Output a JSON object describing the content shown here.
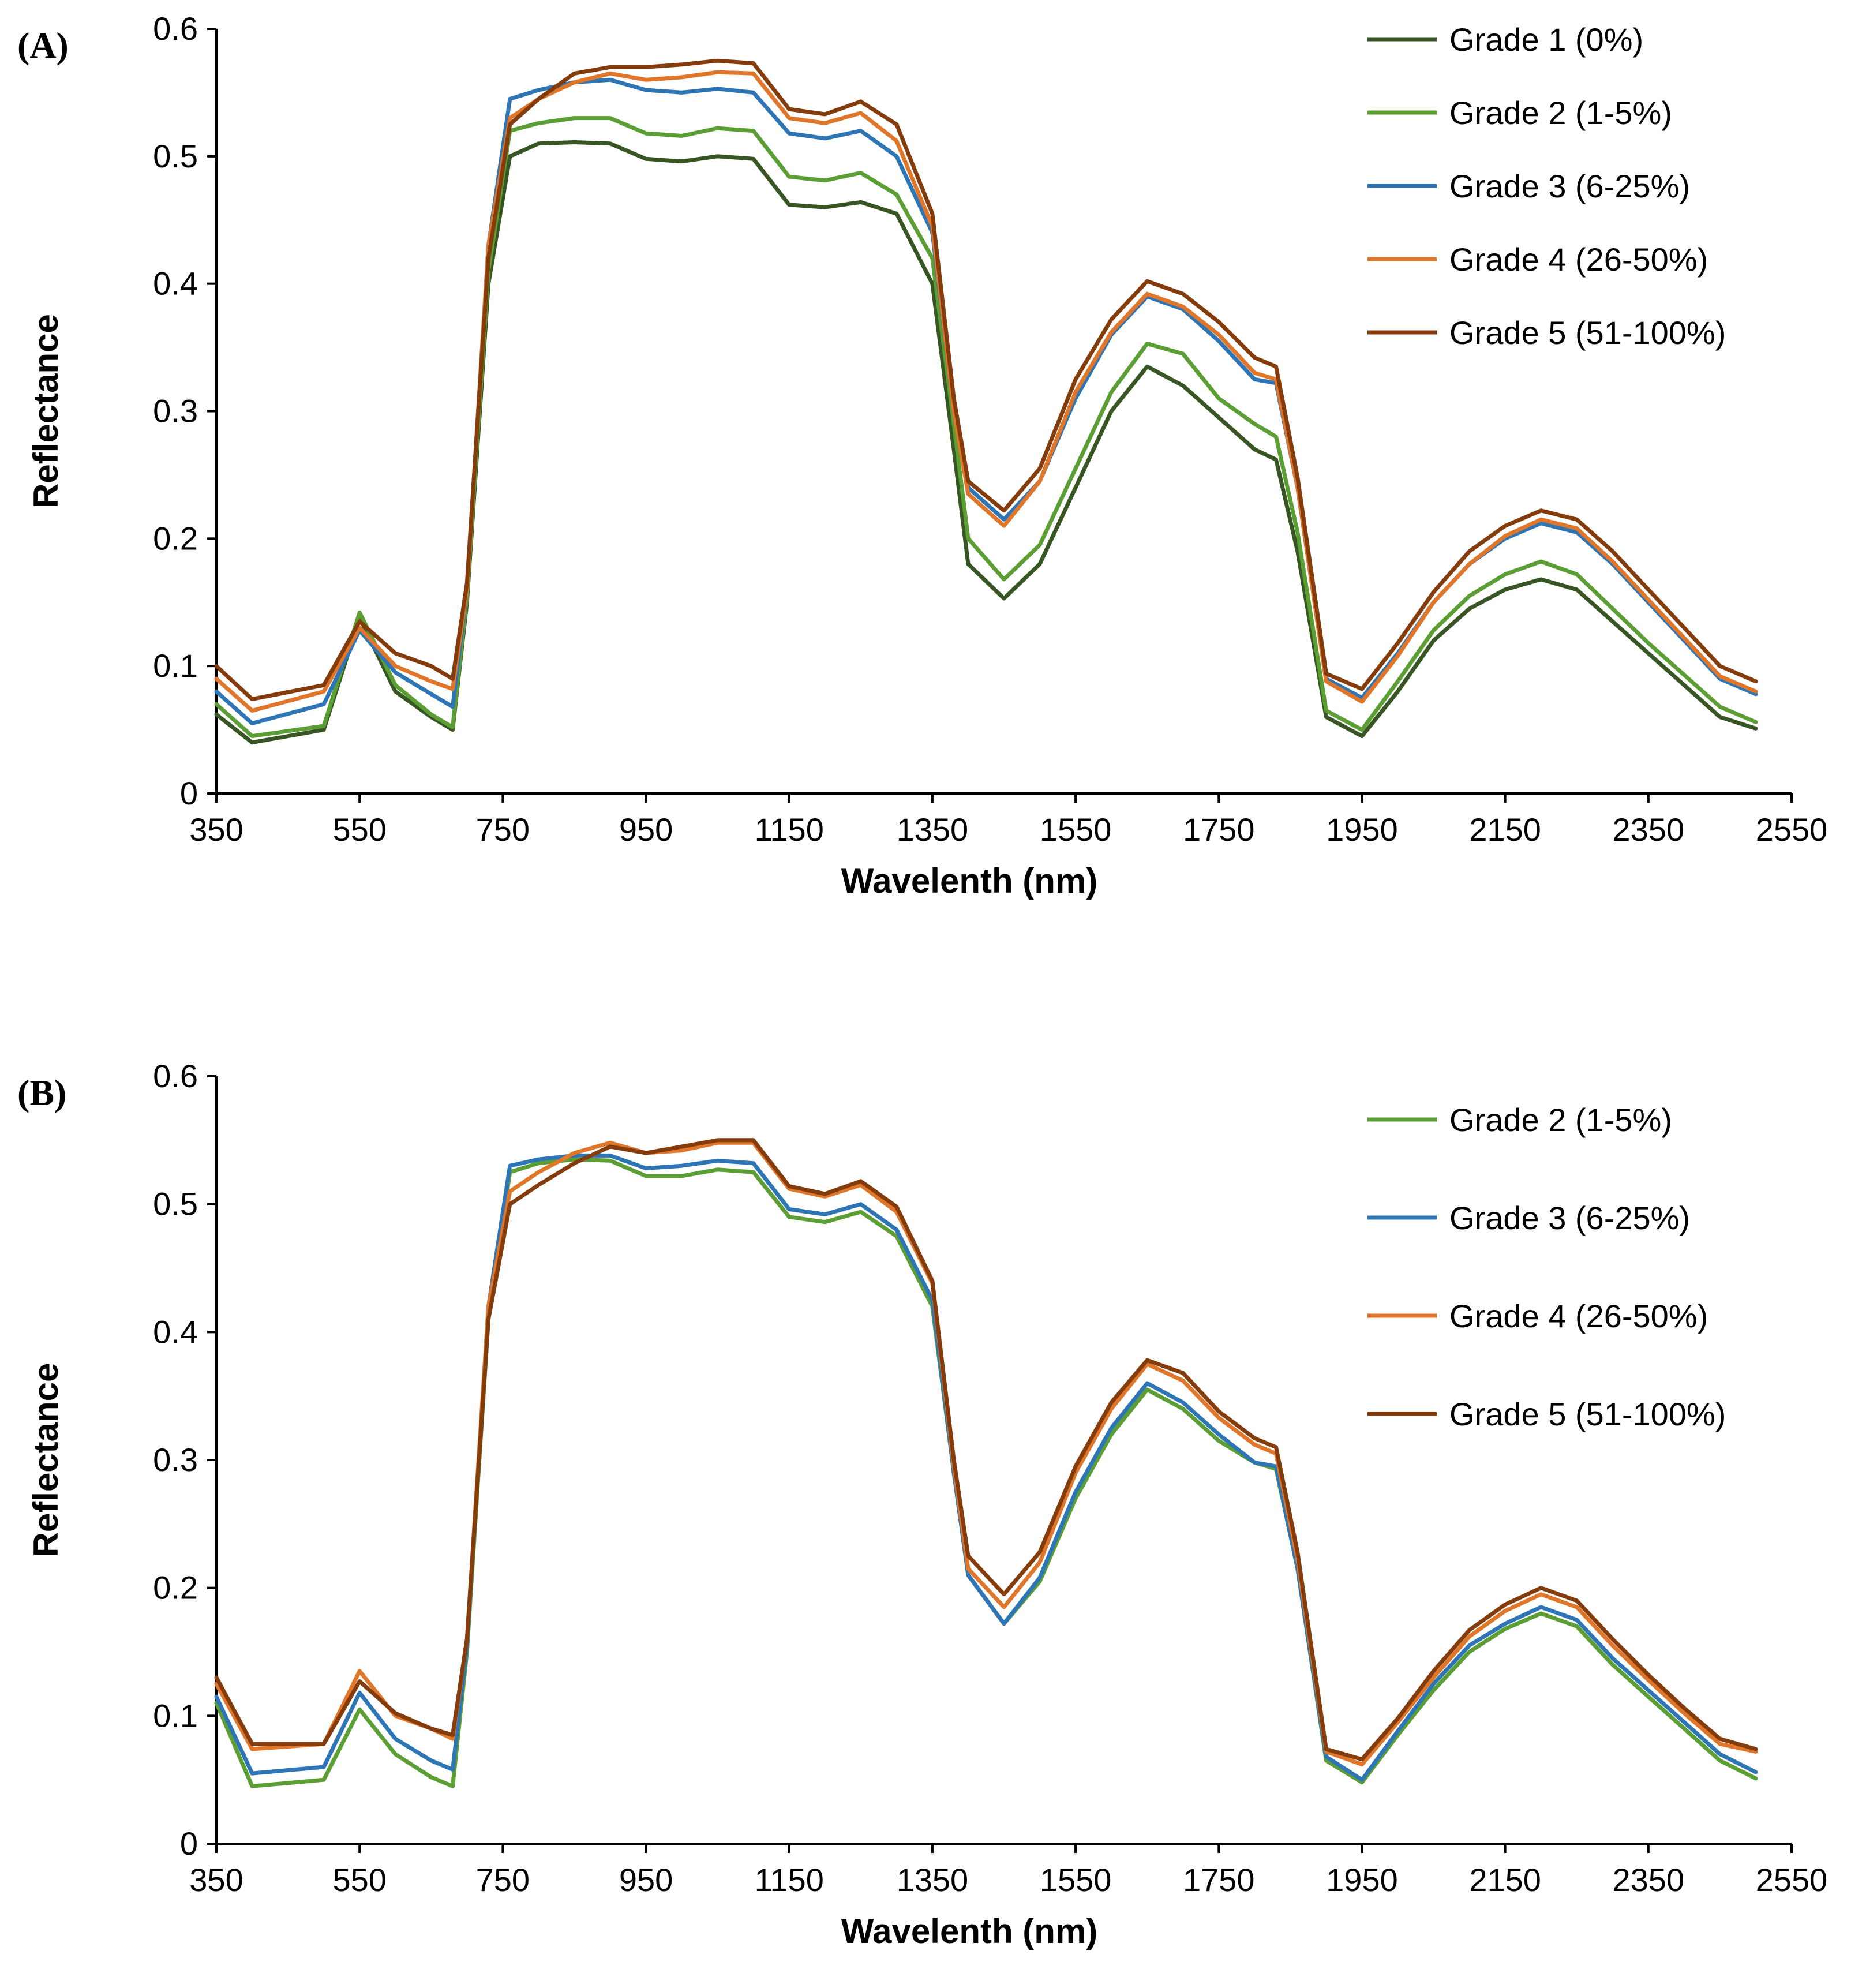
{
  "chart_data": [
    {
      "type": "line",
      "panel_label": "(A)",
      "xlabel": "Wavelenth (nm)",
      "ylabel": "Reflectance",
      "xlim": [
        350,
        2550
      ],
      "ylim": [
        0,
        0.6
      ],
      "xticks": [
        350,
        550,
        750,
        950,
        1150,
        1350,
        1550,
        1750,
        1950,
        2150,
        2350,
        2550
      ],
      "yticks": [
        0,
        0.1,
        0.2,
        0.3,
        0.4,
        0.5,
        0.6
      ],
      "ytick_labels": [
        "0",
        "0.1",
        "0.2",
        "0.3",
        "0.4",
        "0.5",
        "0.6"
      ],
      "legend_position": "top-right",
      "grid": false,
      "x": [
        350,
        400,
        500,
        550,
        600,
        650,
        680,
        700,
        730,
        760,
        800,
        850,
        900,
        950,
        1000,
        1050,
        1100,
        1150,
        1200,
        1250,
        1300,
        1350,
        1380,
        1400,
        1450,
        1500,
        1550,
        1600,
        1650,
        1700,
        1750,
        1800,
        1830,
        1860,
        1900,
        1950,
        2000,
        2050,
        2100,
        2150,
        2200,
        2250,
        2300,
        2350,
        2400,
        2450,
        2500
      ],
      "series": [
        {
          "name": "Grade 1 (0%)",
          "color": "#375623",
          "values": [
            0.062,
            0.04,
            0.05,
            0.138,
            0.08,
            0.06,
            0.05,
            0.15,
            0.4,
            0.5,
            0.51,
            0.511,
            0.51,
            0.498,
            0.496,
            0.5,
            0.498,
            0.462,
            0.46,
            0.464,
            0.455,
            0.4,
            0.27,
            0.18,
            0.153,
            0.18,
            0.24,
            0.3,
            0.335,
            0.32,
            0.295,
            0.27,
            0.262,
            0.19,
            0.06,
            0.045,
            0.08,
            0.12,
            0.145,
            0.16,
            0.168,
            0.16,
            0.135,
            0.11,
            0.085,
            0.06,
            0.051
          ]
        },
        {
          "name": "Grade 2 (1-5%)",
          "color": "#5a9e34",
          "values": [
            0.07,
            0.045,
            0.053,
            0.142,
            0.085,
            0.062,
            0.052,
            0.155,
            0.41,
            0.52,
            0.526,
            0.53,
            0.53,
            0.518,
            0.516,
            0.522,
            0.52,
            0.484,
            0.481,
            0.487,
            0.47,
            0.42,
            0.29,
            0.2,
            0.168,
            0.195,
            0.255,
            0.315,
            0.353,
            0.345,
            0.31,
            0.29,
            0.28,
            0.205,
            0.065,
            0.05,
            0.088,
            0.128,
            0.155,
            0.172,
            0.182,
            0.172,
            0.145,
            0.118,
            0.093,
            0.068,
            0.056
          ]
        },
        {
          "name": "Grade 3 (6-25%)",
          "color": "#2e75b6",
          "values": [
            0.08,
            0.055,
            0.07,
            0.128,
            0.095,
            0.078,
            0.068,
            0.16,
            0.43,
            0.545,
            0.552,
            0.558,
            0.56,
            0.552,
            0.55,
            0.553,
            0.55,
            0.518,
            0.514,
            0.52,
            0.5,
            0.44,
            0.3,
            0.24,
            0.215,
            0.245,
            0.31,
            0.36,
            0.39,
            0.38,
            0.355,
            0.325,
            0.322,
            0.24,
            0.09,
            0.075,
            0.11,
            0.15,
            0.18,
            0.2,
            0.212,
            0.205,
            0.18,
            0.15,
            0.12,
            0.09,
            0.078
          ]
        },
        {
          "name": "Grade 4 (26-50%)",
          "color": "#e0762a",
          "values": [
            0.09,
            0.065,
            0.08,
            0.13,
            0.1,
            0.088,
            0.082,
            0.16,
            0.43,
            0.53,
            0.545,
            0.558,
            0.565,
            0.56,
            0.562,
            0.566,
            0.565,
            0.53,
            0.526,
            0.534,
            0.512,
            0.445,
            0.3,
            0.235,
            0.21,
            0.245,
            0.315,
            0.362,
            0.392,
            0.382,
            0.36,
            0.33,
            0.325,
            0.24,
            0.088,
            0.072,
            0.108,
            0.15,
            0.18,
            0.202,
            0.215,
            0.208,
            0.182,
            0.152,
            0.122,
            0.092,
            0.08
          ]
        },
        {
          "name": "Grade 5 (51-100%)",
          "color": "#843c0c",
          "values": [
            0.1,
            0.074,
            0.085,
            0.135,
            0.11,
            0.1,
            0.09,
            0.165,
            0.42,
            0.525,
            0.545,
            0.565,
            0.57,
            0.57,
            0.572,
            0.575,
            0.573,
            0.537,
            0.533,
            0.543,
            0.525,
            0.455,
            0.31,
            0.245,
            0.222,
            0.255,
            0.325,
            0.372,
            0.402,
            0.392,
            0.37,
            0.342,
            0.335,
            0.248,
            0.094,
            0.082,
            0.118,
            0.158,
            0.19,
            0.21,
            0.222,
            0.215,
            0.19,
            0.16,
            0.13,
            0.1,
            0.088
          ]
        }
      ]
    },
    {
      "type": "line",
      "panel_label": "(B)",
      "xlabel": "Wavelenth (nm)",
      "ylabel": "Reflectance",
      "xlim": [
        350,
        2550
      ],
      "ylim": [
        0,
        0.6
      ],
      "xticks": [
        350,
        550,
        750,
        950,
        1150,
        1350,
        1550,
        1750,
        1950,
        2150,
        2350,
        2550
      ],
      "yticks": [
        0,
        0.1,
        0.2,
        0.3,
        0.4,
        0.5,
        0.6
      ],
      "ytick_labels": [
        "0",
        "0.1",
        "0.2",
        "0.3",
        "0.4",
        "0.5",
        "0.6"
      ],
      "legend_position": "top-right",
      "grid": false,
      "x": [
        350,
        400,
        500,
        550,
        600,
        650,
        680,
        700,
        730,
        760,
        800,
        850,
        900,
        950,
        1000,
        1050,
        1100,
        1150,
        1200,
        1250,
        1300,
        1350,
        1380,
        1400,
        1450,
        1500,
        1550,
        1600,
        1650,
        1700,
        1750,
        1800,
        1830,
        1860,
        1900,
        1950,
        2000,
        2050,
        2100,
        2150,
        2200,
        2250,
        2300,
        2350,
        2400,
        2450,
        2500
      ],
      "series": [
        {
          "name": "Grade 2 (1-5%)",
          "color": "#5a9e34",
          "values": [
            0.11,
            0.045,
            0.05,
            0.105,
            0.07,
            0.052,
            0.045,
            0.15,
            0.41,
            0.525,
            0.532,
            0.535,
            0.534,
            0.522,
            0.522,
            0.527,
            0.525,
            0.49,
            0.486,
            0.494,
            0.475,
            0.42,
            0.29,
            0.21,
            0.172,
            0.205,
            0.27,
            0.32,
            0.355,
            0.34,
            0.315,
            0.298,
            0.293,
            0.215,
            0.065,
            0.048,
            0.085,
            0.12,
            0.15,
            0.168,
            0.18,
            0.17,
            0.14,
            0.115,
            0.09,
            0.065,
            0.051
          ]
        },
        {
          "name": "Grade 3 (6-25%)",
          "color": "#2e75b6",
          "values": [
            0.115,
            0.055,
            0.06,
            0.118,
            0.082,
            0.065,
            0.058,
            0.155,
            0.42,
            0.53,
            0.535,
            0.538,
            0.538,
            0.528,
            0.53,
            0.534,
            0.532,
            0.496,
            0.492,
            0.5,
            0.48,
            0.425,
            0.29,
            0.21,
            0.172,
            0.208,
            0.275,
            0.325,
            0.36,
            0.345,
            0.32,
            0.298,
            0.295,
            0.215,
            0.068,
            0.05,
            0.088,
            0.125,
            0.155,
            0.172,
            0.185,
            0.175,
            0.145,
            0.12,
            0.095,
            0.07,
            0.056
          ]
        },
        {
          "name": "Grade 4 (26-50%)",
          "color": "#e0762a",
          "values": [
            0.125,
            0.074,
            0.078,
            0.135,
            0.1,
            0.09,
            0.082,
            0.16,
            0.42,
            0.51,
            0.525,
            0.54,
            0.548,
            0.54,
            0.542,
            0.548,
            0.548,
            0.512,
            0.506,
            0.515,
            0.494,
            0.438,
            0.295,
            0.215,
            0.185,
            0.22,
            0.29,
            0.34,
            0.375,
            0.362,
            0.333,
            0.312,
            0.305,
            0.222,
            0.072,
            0.062,
            0.095,
            0.13,
            0.162,
            0.182,
            0.195,
            0.185,
            0.155,
            0.128,
            0.102,
            0.078,
            0.072
          ]
        },
        {
          "name": "Grade 5 (51-100%)",
          "color": "#843c0c",
          "values": [
            0.13,
            0.078,
            0.078,
            0.127,
            0.102,
            0.09,
            0.085,
            0.16,
            0.41,
            0.5,
            0.515,
            0.532,
            0.545,
            0.54,
            0.545,
            0.55,
            0.55,
            0.514,
            0.508,
            0.518,
            0.498,
            0.44,
            0.3,
            0.225,
            0.195,
            0.228,
            0.295,
            0.345,
            0.378,
            0.368,
            0.338,
            0.317,
            0.31,
            0.228,
            0.074,
            0.066,
            0.098,
            0.135,
            0.167,
            0.187,
            0.2,
            0.19,
            0.16,
            0.132,
            0.106,
            0.082,
            0.074
          ]
        }
      ]
    }
  ]
}
